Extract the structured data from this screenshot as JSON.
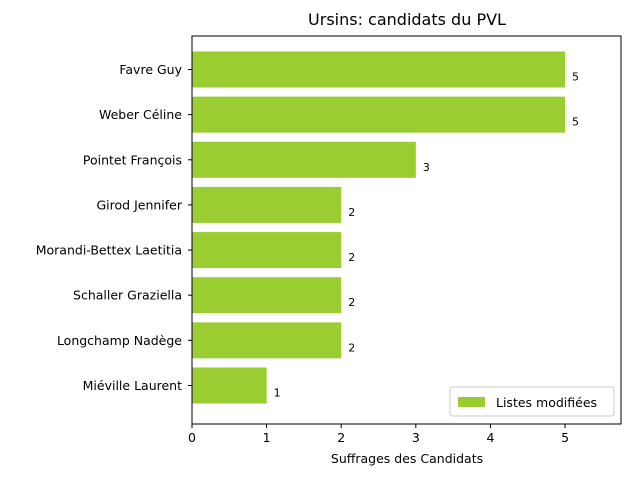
{
  "chart_data": {
    "type": "bar",
    "orientation": "horizontal",
    "title": "Ursins: candidats du PVL",
    "xlabel": "Suffrages des Candidats",
    "ylabel": "",
    "xlim": [
      0,
      5.75
    ],
    "xticks": [
      0,
      1,
      2,
      3,
      4,
      5
    ],
    "categories": [
      "Favre Guy",
      "Weber Céline",
      "Pointet François",
      "Girod Jennifer",
      "Morandi-Bettex Laetitia",
      "Schaller Graziella",
      "Longchamp Nadège",
      "Miéville Laurent"
    ],
    "series": [
      {
        "name": "Listes modifiées",
        "color": "#9acd32",
        "values": [
          5,
          5,
          3,
          2,
          2,
          2,
          2,
          1
        ]
      }
    ],
    "legend": {
      "placement": "lower-right"
    },
    "grid": false
  }
}
